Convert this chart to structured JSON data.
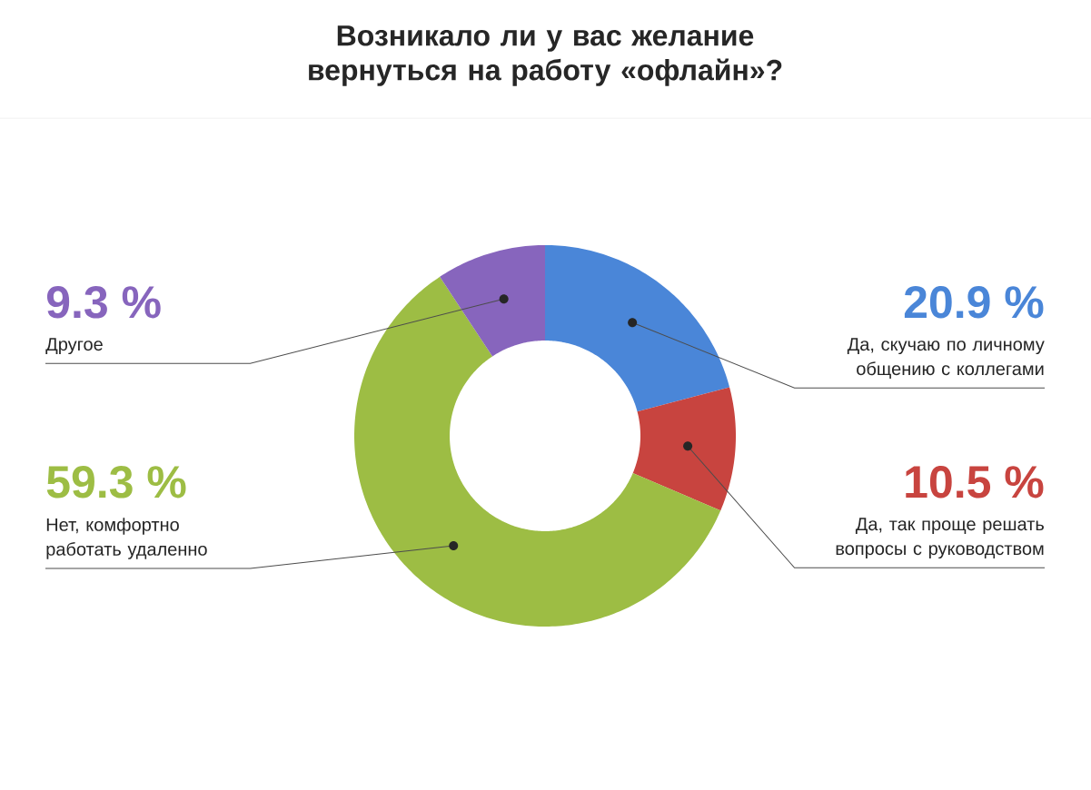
{
  "chart_data": {
    "type": "donut",
    "title": "Возникало ли у вас желание вернуться на работу «офлайн»?",
    "categories": [
      "Да, скучаю по личному общению с коллегами",
      "Да, так проще решать вопросы с руководством",
      "Нет, комфортно работать удаленно",
      "Другое"
    ],
    "values": [
      20.9,
      10.5,
      59.3,
      9.3
    ],
    "colors": [
      "#4a86d8",
      "#c8443f",
      "#9dbd44",
      "#8765bd"
    ],
    "value_labels": [
      "20.9 %",
      "10.5 %",
      "59.3 %",
      "9.3 %"
    ]
  }
}
